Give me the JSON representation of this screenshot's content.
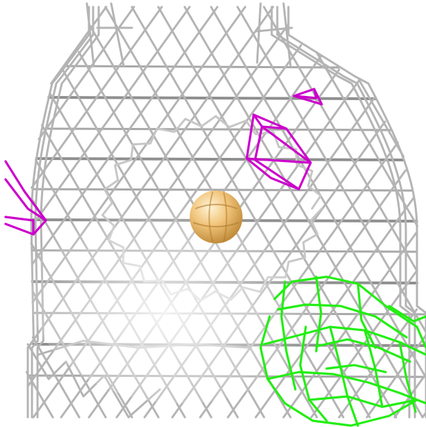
{
  "scene": {
    "background": "#ffffff",
    "mesh_colors": {
      "density_map": "#b4b4b4",
      "negative_difference": "#cc00cc",
      "positive_difference": "#22ee11"
    },
    "atom": {
      "element_color": "#e8b86a"
    }
  }
}
